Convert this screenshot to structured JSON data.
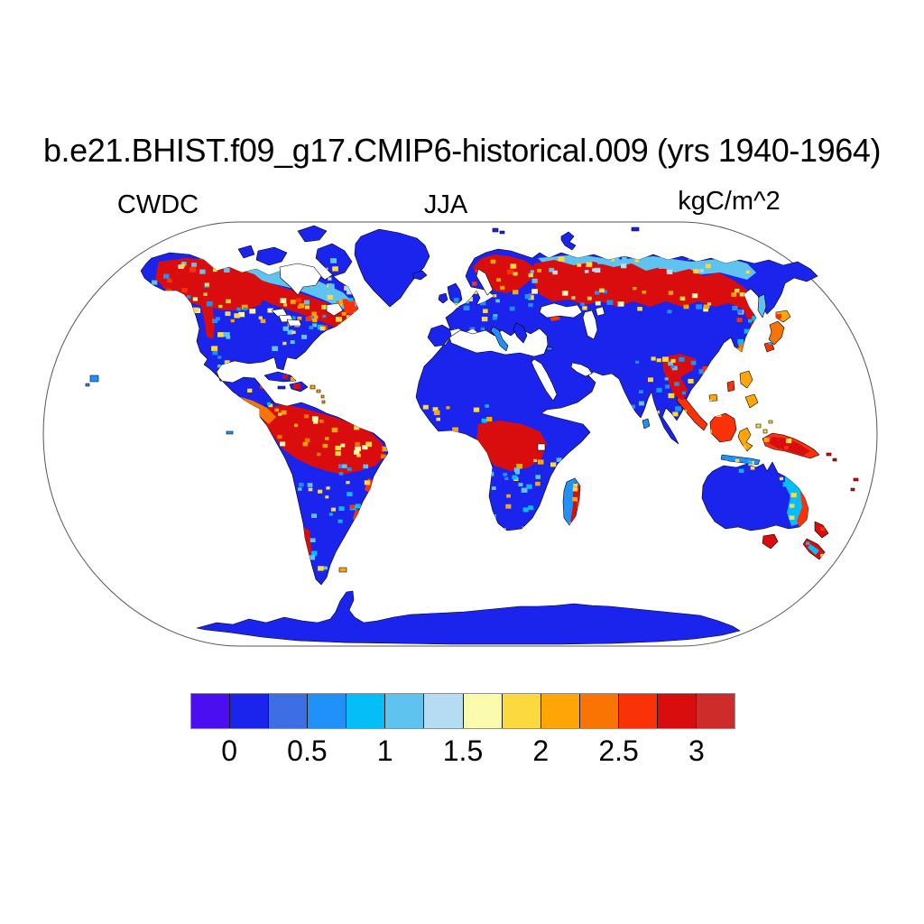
{
  "title": "b.e21.BHIST.f09_g17.CMIP6-historical.009 (yrs 1940-1964)",
  "panel": {
    "variable_label": "CWDC",
    "season_label": "JJA",
    "units_label": "kgC/m^2"
  },
  "colorbar": {
    "tick_labels": [
      "0",
      "0.5",
      "1",
      "1.5",
      "2",
      "2.5",
      "3"
    ],
    "colors": [
      "#4A0EF0",
      "#1B24EC",
      "#3D6EE3",
      "#2191FA",
      "#05BDF7",
      "#5FC3F0",
      "#B5DCF2",
      "#FBFBAD",
      "#FBD93F",
      "#FFA606",
      "#FA7403",
      "#F93307",
      "#D90D0D",
      "#CE2B2B"
    ]
  },
  "chart_data": {
    "type": "heatmap",
    "subtype": "global-map",
    "projection": "Robinson",
    "title": "b.e21.BHIST.f09_g17.CMIP6-historical.009 (yrs 1940-1964)",
    "variable": "CWDC",
    "season": "JJA",
    "units": "kgC/m^2",
    "colorbar_levels": [
      0,
      0.25,
      0.5,
      0.75,
      1,
      1.25,
      1.5,
      1.75,
      2,
      2.25,
      2.5,
      2.75,
      3
    ],
    "colorbar_tick_labels": [
      "0",
      "0.5",
      "1",
      "1.5",
      "2",
      "2.5",
      "3"
    ],
    "palette": [
      "#4A0EF0",
      "#1B24EC",
      "#3D6EE3",
      "#2191FA",
      "#05BDF7",
      "#5FC3F0",
      "#B5DCF2",
      "#FBFBAD",
      "#FBD93F",
      "#FFA606",
      "#FA7403",
      "#F93307",
      "#D90D0D",
      "#CE2B2B"
    ],
    "value_range_shown": "approximately 0 to >3 kgC/m^2, land only",
    "ocean": "no data (white)",
    "high_value_regions": [
      "boreal Canada and interior Alaska (~>3)",
      "Quebec / Maritimes / Newfoundland",
      "Pacific Northwest coast strip",
      "Scandinavia and boreal Russia / Siberia band (~>3)",
      "Russian Far East / Okhotsk coast",
      "Amazon basin (2.5->3)",
      "Congo basin (2.5->3)",
      "eastern Himalaya / Yunnan",
      "Indochina, Sumatra, Borneo, New Guinea",
      "Japan and Korea coast (1.5-3)",
      "eastern Australia coastal fringe and Tasmania",
      "New Zealand",
      "southern Chile coast",
      "eastern Madagascar",
      "Central America / Colombia (1.5-2.5)"
    ],
    "low_value_regions": [
      "Arctic tundra fringe (0.5-1.5 cyan band)",
      "central/western United States (~0-0.5)",
      "Greenland and Antarctica (~0-0.5)",
      "Sahara, Arabia, central Asia deserts (~0-0.5)",
      "interior Australia (~0-0.5)",
      "most of India and southern Africa (~0-0.5)"
    ]
  }
}
